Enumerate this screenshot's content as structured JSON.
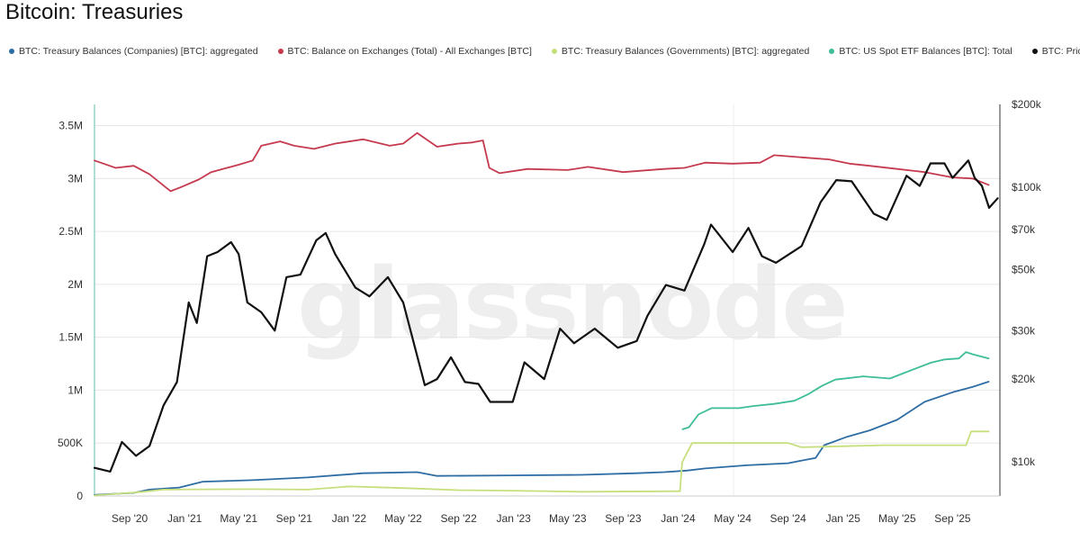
{
  "header": {
    "title": "Bitcoin: Treasuries"
  },
  "watermark": "glassnode",
  "chart_data": {
    "type": "line",
    "title": "Bitcoin: Treasuries",
    "x_domain": [
      "2020-06-15",
      "2025-12-15"
    ],
    "x_ticks": [
      {
        "date": "2020-09-01",
        "label": "Sep '20"
      },
      {
        "date": "2021-01-01",
        "label": "Jan '21"
      },
      {
        "date": "2021-05-01",
        "label": "May '21"
      },
      {
        "date": "2021-09-01",
        "label": "Sep '21"
      },
      {
        "date": "2022-01-01",
        "label": "Jan '22"
      },
      {
        "date": "2022-05-01",
        "label": "May '22"
      },
      {
        "date": "2022-09-01",
        "label": "Sep '22"
      },
      {
        "date": "2023-01-01",
        "label": "Jan '23"
      },
      {
        "date": "2023-05-01",
        "label": "May '23"
      },
      {
        "date": "2023-09-01",
        "label": "Sep '23"
      },
      {
        "date": "2024-01-01",
        "label": "Jan '24"
      },
      {
        "date": "2024-05-01",
        "label": "May '24"
      },
      {
        "date": "2024-09-01",
        "label": "Sep '24"
      },
      {
        "date": "2025-01-01",
        "label": "Jan '25"
      },
      {
        "date": "2025-05-01",
        "label": "May '25"
      },
      {
        "date": "2025-09-01",
        "label": "Sep '25"
      }
    ],
    "y_left": {
      "ylim": [
        0,
        3700000
      ],
      "scale": "linear",
      "ticks": [
        {
          "value": 0,
          "label": "0"
        },
        {
          "value": 500000,
          "label": "500K"
        },
        {
          "value": 1000000,
          "label": "1M"
        },
        {
          "value": 1500000,
          "label": "1.5M"
        },
        {
          "value": 2000000,
          "label": "2M"
        },
        {
          "value": 2500000,
          "label": "2.5M"
        },
        {
          "value": 3000000,
          "label": "3M"
        },
        {
          "value": 3500000,
          "label": "3.5M"
        }
      ]
    },
    "y_right": {
      "ylim": [
        7500,
        200000
      ],
      "scale": "log",
      "ticks": [
        {
          "value": 10000,
          "label": "$10k"
        },
        {
          "value": 20000,
          "label": "$20k"
        },
        {
          "value": 30000,
          "label": "$30k"
        },
        {
          "value": 50000,
          "label": "$50k"
        },
        {
          "value": 70000,
          "label": "$70k"
        },
        {
          "value": 100000,
          "label": "$100k"
        },
        {
          "value": 200000,
          "label": "$200k"
        }
      ]
    },
    "grid": true,
    "legend_position": "top-left",
    "series": [
      {
        "name": "BTC: Treasury Balances (Companies) [BTC]: aggregated",
        "color": "#2e6da4",
        "axis": "left",
        "points": [
          [
            "2020-06-15",
            10000
          ],
          [
            "2020-09-10",
            30000
          ],
          [
            "2020-10-15",
            60000
          ],
          [
            "2020-12-20",
            80000
          ],
          [
            "2021-02-10",
            135000
          ],
          [
            "2021-06-01",
            150000
          ],
          [
            "2021-10-01",
            175000
          ],
          [
            "2022-02-01",
            215000
          ],
          [
            "2022-06-01",
            225000
          ],
          [
            "2022-07-15",
            190000
          ],
          [
            "2022-12-31",
            195000
          ],
          [
            "2023-06-01",
            200000
          ],
          [
            "2023-10-01",
            215000
          ],
          [
            "2023-12-01",
            225000
          ],
          [
            "2024-01-20",
            240000
          ],
          [
            "2024-03-01",
            260000
          ],
          [
            "2024-06-01",
            290000
          ],
          [
            "2024-09-01",
            310000
          ],
          [
            "2024-11-01",
            360000
          ],
          [
            "2024-11-20",
            480000
          ],
          [
            "2025-01-10",
            560000
          ],
          [
            "2025-03-01",
            620000
          ],
          [
            "2025-05-01",
            720000
          ],
          [
            "2025-07-01",
            890000
          ],
          [
            "2025-09-01",
            980000
          ],
          [
            "2025-10-15",
            1030000
          ],
          [
            "2025-11-20",
            1080000
          ]
        ]
      },
      {
        "name": "BTC: Balance on Exchanges (Total) - All Exchanges [BTC]",
        "color": "#c53a4f",
        "axis": "left",
        "points": [
          [
            "2020-06-15",
            3170000
          ],
          [
            "2020-08-01",
            3100000
          ],
          [
            "2020-09-10",
            3120000
          ],
          [
            "2020-10-15",
            3040000
          ],
          [
            "2020-12-01",
            2880000
          ],
          [
            "2020-12-25",
            2920000
          ],
          [
            "2021-02-01",
            2990000
          ],
          [
            "2021-03-01",
            3060000
          ],
          [
            "2021-05-01",
            3130000
          ],
          [
            "2021-06-01",
            3170000
          ],
          [
            "2021-06-20",
            3310000
          ],
          [
            "2021-08-01",
            3350000
          ],
          [
            "2021-09-01",
            3310000
          ],
          [
            "2021-10-15",
            3280000
          ],
          [
            "2021-12-01",
            3330000
          ],
          [
            "2022-02-01",
            3370000
          ],
          [
            "2022-04-01",
            3310000
          ],
          [
            "2022-05-01",
            3330000
          ],
          [
            "2022-06-01",
            3430000
          ],
          [
            "2022-07-15",
            3300000
          ],
          [
            "2022-09-01",
            3330000
          ],
          [
            "2022-10-01",
            3340000
          ],
          [
            "2022-10-25",
            3360000
          ],
          [
            "2022-11-08",
            3100000
          ],
          [
            "2022-12-01",
            3050000
          ],
          [
            "2023-02-01",
            3090000
          ],
          [
            "2023-05-01",
            3080000
          ],
          [
            "2023-06-15",
            3110000
          ],
          [
            "2023-09-01",
            3060000
          ],
          [
            "2023-12-01",
            3090000
          ],
          [
            "2024-01-15",
            3100000
          ],
          [
            "2024-03-01",
            3150000
          ],
          [
            "2024-05-01",
            3140000
          ],
          [
            "2024-07-01",
            3150000
          ],
          [
            "2024-08-01",
            3220000
          ],
          [
            "2024-10-01",
            3200000
          ],
          [
            "2024-12-01",
            3180000
          ],
          [
            "2025-01-15",
            3140000
          ],
          [
            "2025-03-01",
            3120000
          ],
          [
            "2025-05-01",
            3090000
          ],
          [
            "2025-07-01",
            3060000
          ],
          [
            "2025-09-01",
            3010000
          ],
          [
            "2025-10-15",
            3000000
          ],
          [
            "2025-11-20",
            2940000
          ]
        ]
      },
      {
        "name": "BTC: Treasury Balances (Governments) [BTC]: aggregated",
        "color": "#c6df7c",
        "axis": "left",
        "points": [
          [
            "2020-06-15",
            5000
          ],
          [
            "2020-10-01",
            40000
          ],
          [
            "2020-11-15",
            60000
          ],
          [
            "2021-06-01",
            65000
          ],
          [
            "2021-10-01",
            60000
          ],
          [
            "2022-01-01",
            90000
          ],
          [
            "2022-05-01",
            75000
          ],
          [
            "2022-09-01",
            55000
          ],
          [
            "2022-12-31",
            50000
          ],
          [
            "2023-06-01",
            40000
          ],
          [
            "2023-12-31",
            45000
          ],
          [
            "2024-01-05",
            45000
          ],
          [
            "2024-01-10",
            320000
          ],
          [
            "2024-02-01",
            500000
          ],
          [
            "2024-09-01",
            500000
          ],
          [
            "2024-10-01",
            460000
          ],
          [
            "2025-01-01",
            470000
          ],
          [
            "2025-04-01",
            480000
          ],
          [
            "2025-07-01",
            480000
          ],
          [
            "2025-10-01",
            480000
          ],
          [
            "2025-10-12",
            610000
          ],
          [
            "2025-11-20",
            610000
          ]
        ]
      },
      {
        "name": "BTC: US Spot ETF Balances [BTC]: Total",
        "color": "#3ebd98",
        "axis": "left",
        "points": [
          [
            "2024-01-11",
            630000
          ],
          [
            "2024-01-25",
            650000
          ],
          [
            "2024-02-15",
            770000
          ],
          [
            "2024-03-15",
            830000
          ],
          [
            "2024-04-15",
            830000
          ],
          [
            "2024-05-15",
            830000
          ],
          [
            "2024-06-15",
            850000
          ],
          [
            "2024-08-01",
            870000
          ],
          [
            "2024-09-15",
            900000
          ],
          [
            "2024-10-15",
            960000
          ],
          [
            "2024-11-15",
            1040000
          ],
          [
            "2024-12-15",
            1100000
          ],
          [
            "2025-02-15",
            1130000
          ],
          [
            "2025-04-15",
            1110000
          ],
          [
            "2025-05-15",
            1160000
          ],
          [
            "2025-07-15",
            1260000
          ],
          [
            "2025-08-15",
            1290000
          ],
          [
            "2025-09-15",
            1300000
          ],
          [
            "2025-10-01",
            1360000
          ],
          [
            "2025-10-15",
            1340000
          ],
          [
            "2025-11-20",
            1300000
          ]
        ]
      },
      {
        "name": "BTC: Price [USD]",
        "color": "#111111",
        "axis": "right",
        "points": [
          [
            "2020-06-15",
            9500
          ],
          [
            "2020-07-20",
            9200
          ],
          [
            "2020-08-15",
            11800
          ],
          [
            "2020-09-15",
            10500
          ],
          [
            "2020-10-15",
            11400
          ],
          [
            "2020-11-15",
            16000
          ],
          [
            "2020-12-15",
            19500
          ],
          [
            "2021-01-10",
            38000
          ],
          [
            "2021-01-28",
            32000
          ],
          [
            "2021-02-20",
            56000
          ],
          [
            "2021-03-15",
            58000
          ],
          [
            "2021-04-14",
            63000
          ],
          [
            "2021-05-01",
            57000
          ],
          [
            "2021-05-20",
            38000
          ],
          [
            "2021-06-20",
            35000
          ],
          [
            "2021-07-20",
            30000
          ],
          [
            "2021-08-15",
            47000
          ],
          [
            "2021-09-15",
            48000
          ],
          [
            "2021-10-20",
            64000
          ],
          [
            "2021-11-10",
            68000
          ],
          [
            "2021-12-01",
            57000
          ],
          [
            "2022-01-15",
            43000
          ],
          [
            "2022-02-15",
            40000
          ],
          [
            "2022-03-28",
            47000
          ],
          [
            "2022-05-01",
            38000
          ],
          [
            "2022-06-18",
            19000
          ],
          [
            "2022-07-15",
            20000
          ],
          [
            "2022-08-15",
            24000
          ],
          [
            "2022-09-15",
            19500
          ],
          [
            "2022-10-15",
            19200
          ],
          [
            "2022-11-10",
            16500
          ],
          [
            "2022-12-30",
            16500
          ],
          [
            "2023-01-25",
            23000
          ],
          [
            "2023-03-10",
            20000
          ],
          [
            "2023-04-14",
            30500
          ],
          [
            "2023-05-15",
            27000
          ],
          [
            "2023-06-30",
            30500
          ],
          [
            "2023-08-20",
            26000
          ],
          [
            "2023-10-01",
            27500
          ],
          [
            "2023-10-25",
            34000
          ],
          [
            "2023-12-05",
            44000
          ],
          [
            "2024-01-15",
            42000
          ],
          [
            "2024-02-28",
            62000
          ],
          [
            "2024-03-14",
            73000
          ],
          [
            "2024-05-01",
            58000
          ],
          [
            "2024-06-05",
            71000
          ],
          [
            "2024-07-05",
            56000
          ],
          [
            "2024-08-05",
            53000
          ],
          [
            "2024-10-01",
            61000
          ],
          [
            "2024-11-12",
            88000
          ],
          [
            "2024-12-17",
            106000
          ],
          [
            "2025-01-20",
            105000
          ],
          [
            "2025-03-10",
            80000
          ],
          [
            "2025-04-08",
            76000
          ],
          [
            "2025-05-22",
            110000
          ],
          [
            "2025-06-20",
            101000
          ],
          [
            "2025-07-14",
            122000
          ],
          [
            "2025-08-14",
            122000
          ],
          [
            "2025-09-01",
            108000
          ],
          [
            "2025-10-06",
            125000
          ],
          [
            "2025-10-20",
            108000
          ],
          [
            "2025-11-05",
            101000
          ],
          [
            "2025-11-21",
            84000
          ],
          [
            "2025-12-10",
            91000
          ]
        ]
      }
    ]
  }
}
